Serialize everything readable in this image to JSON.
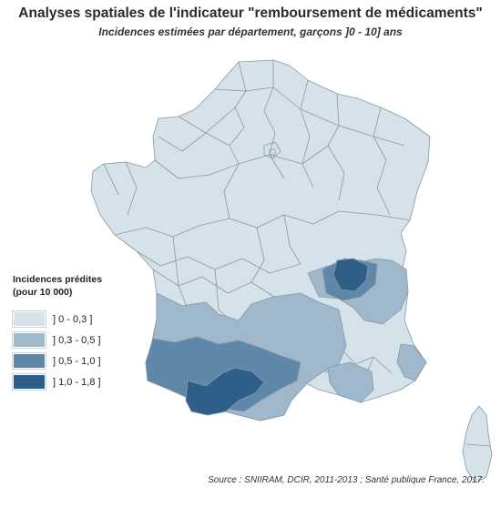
{
  "title": "Analyses spatiales de l'indicateur \"remboursement de médicaments\"",
  "subtitle": "Incidences estimées par département, garçons ]0 - 10] ans",
  "legend": {
    "title_line1": "Incidences prédites",
    "title_line2": "(pour 10 000)",
    "items": [
      {
        "label": "] 0 - 0,3 ]",
        "color": "#d6e2ea"
      },
      {
        "label": "] 0,3 - 0,5 ]",
        "color": "#9fb8cc"
      },
      {
        "label": "] 0,5 - 1,0 ]",
        "color": "#5f87a9"
      },
      {
        "label": "] 1,0 - 1,8 ]",
        "color": "#2f5f88"
      }
    ]
  },
  "source": "Source : SNIIRAM, DCIR, 2011-2013 ; Santé publique France, 2017.",
  "colors": {
    "border": "#8797a6",
    "background": "#ffffff"
  }
}
